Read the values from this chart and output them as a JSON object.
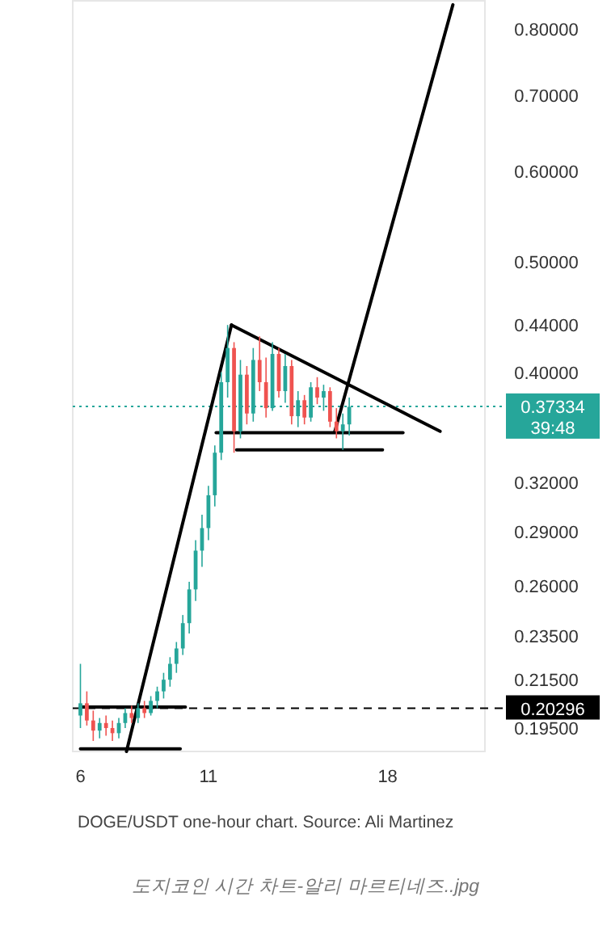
{
  "chart_data": {
    "type": "candlestick",
    "log": "y",
    "x": [
      6,
      6.25,
      6.5,
      6.75,
      7,
      7.25,
      7.5,
      7.75,
      8,
      8.25,
      8.5,
      8.75,
      9,
      9.25,
      9.5,
      9.75,
      10,
      10.25,
      10.5,
      10.75,
      11,
      11.25,
      11.5,
      11.75,
      12,
      12.25,
      12.5,
      12.75,
      13,
      13.25,
      13.5,
      13.75,
      14,
      14.25,
      14.5,
      14.75,
      15,
      15.25,
      15.5,
      15.75,
      16,
      16.25,
      16.5
    ],
    "ohlc": [
      [
        0.2,
        0.222,
        0.195,
        0.205
      ],
      [
        0.205,
        0.21,
        0.196,
        0.198
      ],
      [
        0.198,
        0.202,
        0.19,
        0.194
      ],
      [
        0.194,
        0.199,
        0.191,
        0.197
      ],
      [
        0.197,
        0.2,
        0.192,
        0.195
      ],
      [
        0.195,
        0.198,
        0.19,
        0.193
      ],
      [
        0.193,
        0.199,
        0.191,
        0.197
      ],
      [
        0.197,
        0.203,
        0.195,
        0.201
      ],
      [
        0.201,
        0.204,
        0.197,
        0.199
      ],
      [
        0.199,
        0.205,
        0.197,
        0.203
      ],
      [
        0.203,
        0.206,
        0.199,
        0.201
      ],
      [
        0.201,
        0.208,
        0.2,
        0.206
      ],
      [
        0.206,
        0.212,
        0.203,
        0.21
      ],
      [
        0.21,
        0.218,
        0.207,
        0.215
      ],
      [
        0.215,
        0.225,
        0.212,
        0.222
      ],
      [
        0.222,
        0.232,
        0.218,
        0.229
      ],
      [
        0.229,
        0.245,
        0.226,
        0.241
      ],
      [
        0.241,
        0.262,
        0.236,
        0.258
      ],
      [
        0.258,
        0.285,
        0.252,
        0.279
      ],
      [
        0.279,
        0.3,
        0.27,
        0.292
      ],
      [
        0.292,
        0.318,
        0.285,
        0.312
      ],
      [
        0.312,
        0.345,
        0.305,
        0.34
      ],
      [
        0.34,
        0.4,
        0.335,
        0.392
      ],
      [
        0.392,
        0.44,
        0.38,
        0.42
      ],
      [
        0.42,
        0.425,
        0.34,
        0.355
      ],
      [
        0.355,
        0.41,
        0.35,
        0.398
      ],
      [
        0.398,
        0.405,
        0.36,
        0.368
      ],
      [
        0.368,
        0.42,
        0.362,
        0.41
      ],
      [
        0.41,
        0.43,
        0.385,
        0.392
      ],
      [
        0.392,
        0.412,
        0.365,
        0.372
      ],
      [
        0.372,
        0.425,
        0.37,
        0.415
      ],
      [
        0.415,
        0.42,
        0.38,
        0.385
      ],
      [
        0.385,
        0.415,
        0.376,
        0.405
      ],
      [
        0.405,
        0.41,
        0.36,
        0.366
      ],
      [
        0.366,
        0.385,
        0.358,
        0.378
      ],
      [
        0.378,
        0.382,
        0.36,
        0.365
      ],
      [
        0.365,
        0.392,
        0.362,
        0.388
      ],
      [
        0.388,
        0.396,
        0.375,
        0.38
      ],
      [
        0.38,
        0.39,
        0.37,
        0.385
      ],
      [
        0.385,
        0.388,
        0.358,
        0.362
      ],
      [
        0.362,
        0.372,
        0.35,
        0.355
      ],
      [
        0.355,
        0.368,
        0.342,
        0.36
      ],
      [
        0.36,
        0.38,
        0.352,
        0.373
      ]
    ],
    "series": [
      {
        "type": "line",
        "color": "#000000",
        "x": [
          7.8,
          11.9
        ],
        "values": [
          0.186,
          0.44
        ]
      },
      {
        "type": "line",
        "color": "#000000",
        "x": [
          11.9,
          20.05
        ],
        "values": [
          0.44,
          0.355
        ]
      },
      {
        "type": "line",
        "color": "#000000",
        "x": [
          15.94,
          20.55
        ],
        "values": [
          0.355,
          0.84
        ]
      },
      {
        "type": "line",
        "color": "#000000",
        "x": [
          11.3,
          18.6
        ],
        "values": [
          0.354,
          0.354
        ]
      },
      {
        "type": "line",
        "color": "#000000",
        "x": [
          12.1,
          17.8
        ],
        "values": [
          0.342,
          0.342
        ]
      },
      {
        "type": "line",
        "color": "#000000",
        "x": [
          6,
          10.1
        ],
        "values": [
          0.2035,
          0.2035
        ]
      },
      {
        "type": "line",
        "color": "#000000",
        "x": [
          6,
          9.9
        ],
        "values": [
          0.187,
          0.187
        ]
      }
    ],
    "ref_lines": [
      {
        "axis": "y",
        "value": 0.37334,
        "label": "0.37334",
        "color": "#26a69a",
        "line_style": "dotted"
      },
      {
        "axis": "y",
        "value": 0.20296,
        "label": "0.20296",
        "color": "#000000",
        "line_style": "dashed"
      }
    ],
    "xlim": [
      5.7,
      21.8
    ],
    "xticks": [
      6,
      11,
      18
    ],
    "ylim": [
      0.186,
      0.848
    ],
    "yticks": [
      {
        "value": 0.8,
        "label": "0.80000"
      },
      {
        "value": 0.7,
        "label": "0.70000"
      },
      {
        "value": 0.6,
        "label": "0.60000"
      },
      {
        "value": 0.5,
        "label": "0.50000"
      },
      {
        "value": 0.44,
        "label": "0.44000"
      },
      {
        "value": 0.4,
        "label": "0.40000"
      },
      {
        "value": 0.32,
        "label": "0.32000"
      },
      {
        "value": 0.29,
        "label": "0.29000"
      },
      {
        "value": 0.26,
        "label": "0.26000"
      },
      {
        "value": 0.235,
        "label": "0.23500"
      },
      {
        "value": 0.215,
        "label": "0.21500"
      },
      {
        "value": 0.195,
        "label": "0.19500"
      }
    ],
    "annotations": [
      "39:48",
      "DOGE/USDT one-hour chart. Source: Ali Martinez",
      "도지코인 시간 차트-알리 마르티네즈..jpg"
    ]
  }
}
